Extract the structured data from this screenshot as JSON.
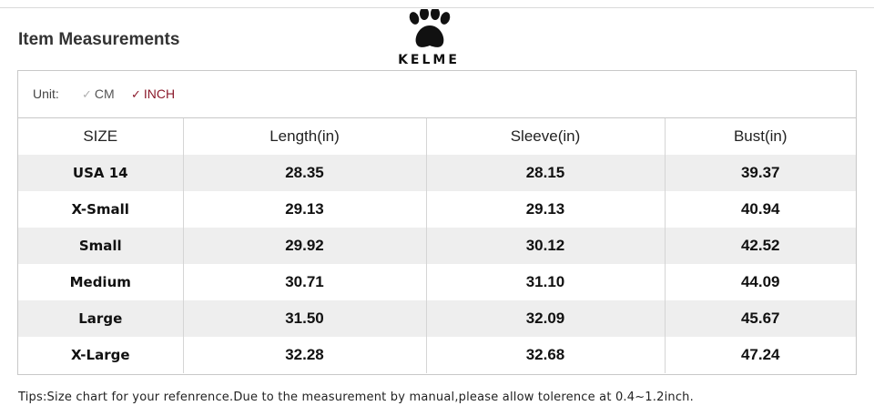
{
  "title": "Item Measurements",
  "brand": {
    "name": "KELME",
    "icon": "paw-icon"
  },
  "unit": {
    "label": "Unit:",
    "options": [
      "CM",
      "INCH"
    ],
    "selected": "INCH",
    "active_color": "#8b1a2b"
  },
  "table": {
    "headers": [
      "SIZE",
      "Length(in)",
      "Sleeve(in)",
      "Bust(in)"
    ],
    "rows": [
      [
        "USA 14",
        "28.35",
        "28.15",
        "39.37"
      ],
      [
        "X-Small",
        "29.13",
        "29.13",
        "40.94"
      ],
      [
        "Small",
        "29.92",
        "30.12",
        "42.52"
      ],
      [
        "Medium",
        "30.71",
        "31.10",
        "44.09"
      ],
      [
        "Large",
        "31.50",
        "32.09",
        "45.67"
      ],
      [
        "X-Large",
        "32.28",
        "32.68",
        "47.24"
      ]
    ]
  },
  "tips": "Tips:Size chart for your refenrence.Due to the measurement by manual,please allow tolerence at 0.4~1.2inch."
}
